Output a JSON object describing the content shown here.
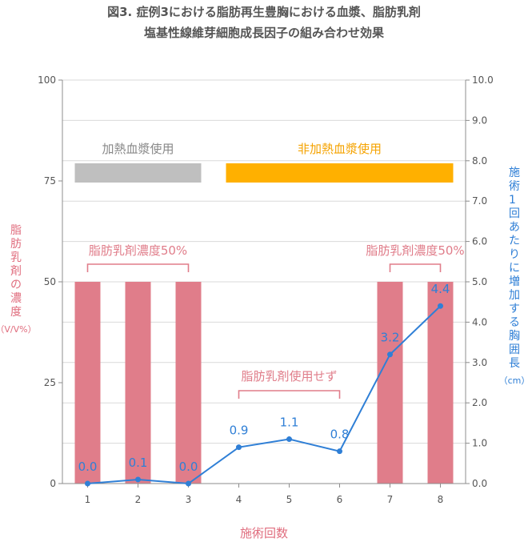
{
  "title_line1": "図3. 症例3における脂肪再生豊胸における血漿、脂肪乳剤",
  "title_line2": "塩基性線維芽細胞成長因子の組み合わせ効果",
  "chart_data": {
    "type": "bar",
    "categories": [
      "1",
      "2",
      "3",
      "4",
      "5",
      "6",
      "7",
      "8"
    ],
    "xlabel": "施術回数",
    "ylabel_left": "脂肪乳剤の濃度",
    "ylabel_left_unit": "（V/V%）",
    "ylabel_right": "施術1回あたりに増加する胸囲長",
    "ylabel_right_unit": "（cm）",
    "ylim_left": [
      0,
      100
    ],
    "yticks_left": [
      "0",
      "25",
      "50",
      "75",
      "100"
    ],
    "ylim_right": [
      0,
      10
    ],
    "yticks_right": [
      "0.0",
      "1.0",
      "2.0",
      "3.0",
      "4.0",
      "5.0",
      "6.0",
      "7.0",
      "8.0",
      "9.0",
      "10.0"
    ],
    "grid": true,
    "series": [
      {
        "type": "bar",
        "axis": "left",
        "color": "#E07D8A",
        "values": [
          50,
          50,
          50,
          0,
          0,
          0,
          50,
          50
        ]
      },
      {
        "type": "line",
        "axis": "right",
        "color": "#2F7FD6",
        "values": [
          0.0,
          0.1,
          0.0,
          0.9,
          1.1,
          0.8,
          3.2,
          4.4
        ],
        "labels": [
          "0.0",
          "0.1",
          "0.0",
          "0.9",
          "1.1",
          "0.8",
          "3.2",
          "4.4"
        ]
      }
    ],
    "annotations": {
      "heated_plasma": {
        "text": "加熱血漿使用",
        "color": "#BFBFBF",
        "text_color": "#888888",
        "from": 1,
        "to": 3
      },
      "unheated_plasma": {
        "text": "非加熱血漿使用",
        "color": "#FFB000",
        "text_color": "#F5A300",
        "from": 4,
        "to": 8
      },
      "emulsion_first": {
        "text": "脂肪乳剤濃度50%",
        "color": "#E07D8A",
        "from": 1,
        "to": 3
      },
      "emulsion_none": {
        "text": "脂肪乳剤使用せず",
        "color": "#E07D8A",
        "from": 4,
        "to": 6
      },
      "emulsion_last": {
        "text": "脂肪乳剤濃度50%",
        "color": "#E07D8A",
        "from": 7,
        "to": 8
      }
    }
  }
}
